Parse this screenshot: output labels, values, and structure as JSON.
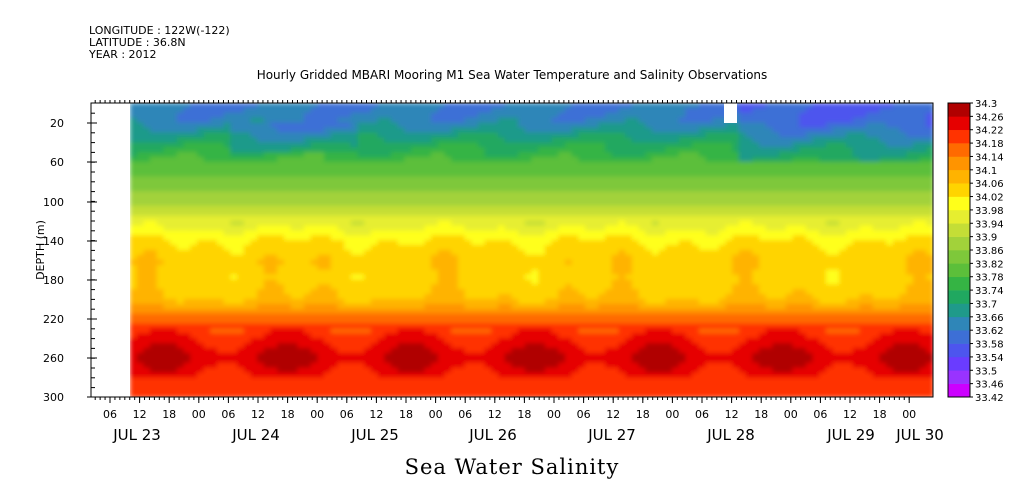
{
  "header": {
    "longitude": "LONGITUDE : 122W(-122)",
    "latitude": "LATITUDE : 36.8N",
    "year": "YEAR : 2012"
  },
  "footer_label": "Sea Water Salinity",
  "chart_data": {
    "type": "heatmap",
    "title": "Hourly Gridded MBARI Mooring M1 Sea Water Temperature and Salinity Observations",
    "ylabel": "DEPTH (m)",
    "xlabel": "",
    "ylim": [
      300,
      0
    ],
    "y_ticks": [
      20,
      60,
      100,
      140,
      180,
      220,
      260,
      300
    ],
    "x_hour_ticks": [
      "06",
      "12",
      "18",
      "00",
      "06",
      "12",
      "18",
      "00",
      "06",
      "12",
      "18",
      "00",
      "06",
      "12",
      "18",
      "00",
      "06",
      "12",
      "18",
      "00",
      "06",
      "12",
      "18",
      "00",
      "06",
      "12",
      "18",
      "00"
    ],
    "x_day_labels": [
      "JUL 23",
      "JUL 24",
      "JUL 25",
      "JUL 26",
      "JUL 27",
      "JUL 28",
      "JUL 29",
      "JUL 30"
    ],
    "colorbar": {
      "min": 33.42,
      "max": 34.3,
      "tick_labels": [
        "34.3",
        "34.26",
        "34.22",
        "34.18",
        "34.14",
        "34.1",
        "34.06",
        "34.02",
        "33.98",
        "33.94",
        "33.9",
        "33.86",
        "33.82",
        "33.78",
        "33.74",
        "33.7",
        "33.66",
        "33.62",
        "33.58",
        "33.54",
        "33.5",
        "33.46",
        "33.42"
      ]
    },
    "depth_profile": {
      "depth_m": [
        5,
        20,
        40,
        60,
        80,
        100,
        120,
        140,
        160,
        180,
        200,
        220,
        240,
        260,
        280,
        300
      ],
      "salinity": [
        33.62,
        33.64,
        33.72,
        33.78,
        33.83,
        33.88,
        33.95,
        34.02,
        34.05,
        34.04,
        34.06,
        34.16,
        34.22,
        34.26,
        34.22,
        34.18
      ]
    },
    "missing_data": [
      "JUL 23 00-12 all depths",
      "JUL 28 ~11 near 10 m"
    ],
    "grid": false,
    "legend": "colorbar-right"
  }
}
